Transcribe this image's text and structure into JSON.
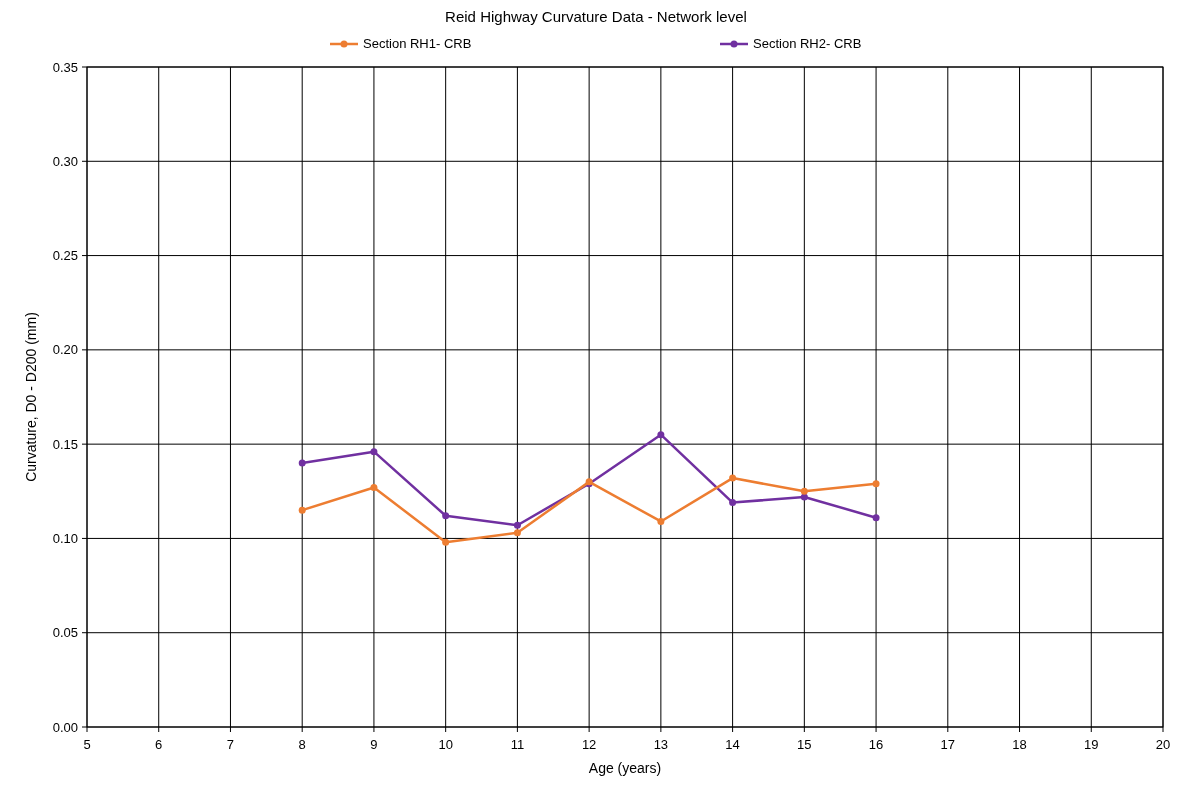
{
  "chart_data": {
    "type": "line",
    "title": "Reid Highway Curvature Data - Network level",
    "xlabel": "Age (years)",
    "ylabel": "Curvature, D0 - D200 (mm)",
    "x": [
      8,
      9,
      10,
      11,
      12,
      13,
      14,
      15,
      16
    ],
    "series": [
      {
        "name": "Section RH1- CRB",
        "color": "#ed7d31",
        "values": [
          0.115,
          0.127,
          0.098,
          0.103,
          0.13,
          0.109,
          0.132,
          0.125,
          0.129
        ]
      },
      {
        "name": "Section RH2- CRB",
        "color": "#7030a0",
        "values": [
          0.14,
          0.146,
          0.112,
          0.107,
          0.129,
          0.155,
          0.119,
          0.122,
          0.111
        ]
      }
    ],
    "xlim": [
      5,
      20
    ],
    "xticks": [
      5,
      6,
      7,
      8,
      9,
      10,
      11,
      12,
      13,
      14,
      15,
      16,
      17,
      18,
      19,
      20
    ],
    "ylim": [
      0,
      0.35
    ],
    "yticks": [
      {
        "value": 0,
        "label": "0.00"
      },
      {
        "value": 0.05,
        "label": "0.05"
      },
      {
        "value": 0.1,
        "label": "0.10"
      },
      {
        "value": 0.15,
        "label": "0.15"
      },
      {
        "value": 0.2,
        "label": "0.20"
      },
      {
        "value": 0.25,
        "label": "0.25"
      },
      {
        "value": 0.3,
        "label": "0.30"
      },
      {
        "value": 0.35,
        "label": "0.35"
      }
    ],
    "grid": true,
    "legend": "top",
    "marker": "circle",
    "line_style": "solid"
  }
}
